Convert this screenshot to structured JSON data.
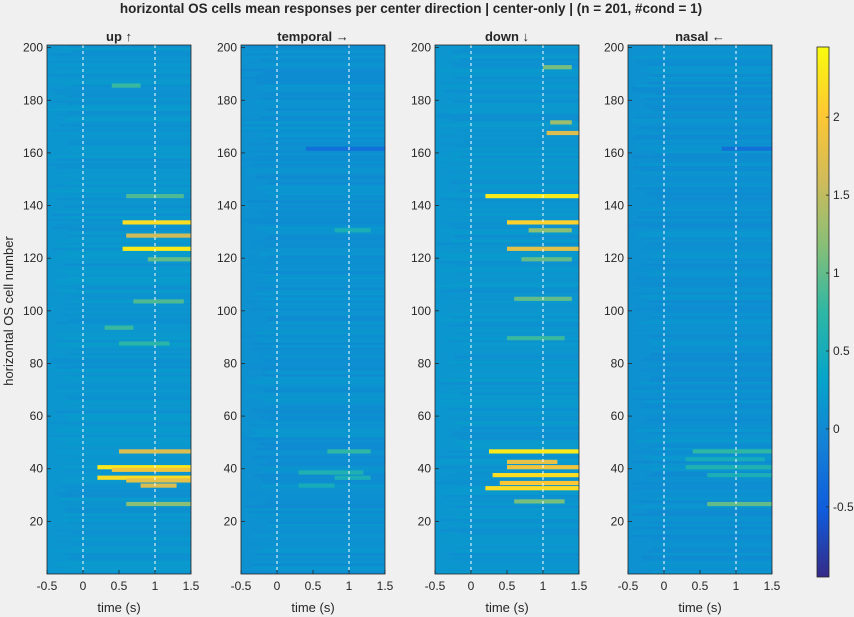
{
  "title": "horizontal OS cells mean responses per center direction | center-only | (n = 201, #cond = 1)",
  "ylabel": "horizontal OS cell number",
  "colorbar": {
    "range": [
      -0.95,
      2.45
    ],
    "ticks": [
      -0.5,
      0,
      0.5,
      1,
      1.5,
      2
    ],
    "tick_labels": [
      "-0.5",
      "0",
      "0.5",
      "1",
      "1.5",
      "2"
    ],
    "colormap": "parula",
    "colors": [
      "#352a87",
      "#0f5cdd",
      "#1481d6",
      "#06a4ca",
      "#2eb7a4",
      "#87bf77",
      "#d1bb59",
      "#fec832",
      "#f9fb0e"
    ]
  },
  "chart_data": [
    {
      "type": "heatmap",
      "title": "up ↑",
      "xlabel": "time (s)",
      "ylabel": "horizontal OS cell number",
      "xlim": [
        -0.5,
        1.5
      ],
      "ylim": [
        0,
        201
      ],
      "xticks": [
        -0.5,
        0,
        0.5,
        1,
        1.5
      ],
      "xtick_labels": [
        "-0.5",
        "0",
        "0.5",
        "1",
        "1.5"
      ],
      "yticks": [
        20,
        40,
        60,
        80,
        100,
        120,
        140,
        160,
        180,
        200
      ],
      "ytick_labels": [
        "20",
        "40",
        "60",
        "80",
        "100",
        "120",
        "140",
        "160",
        "180",
        "200"
      ],
      "vlines": [
        0,
        1
      ],
      "base_value": 0.15,
      "highlights": [
        {
          "row": 134,
          "x": [
            0.55,
            1.5
          ],
          "value": 2.2
        },
        {
          "row": 129,
          "x": [
            0.6,
            1.5
          ],
          "value": 1.6
        },
        {
          "row": 124,
          "x": [
            0.55,
            1.5
          ],
          "value": 2.3
        },
        {
          "row": 120,
          "x": [
            0.9,
            1.5
          ],
          "value": 1.0
        },
        {
          "row": 144,
          "x": [
            0.6,
            1.4
          ],
          "value": 0.9
        },
        {
          "row": 186,
          "x": [
            0.4,
            0.8
          ],
          "value": 0.8
        },
        {
          "row": 104,
          "x": [
            0.7,
            1.4
          ],
          "value": 0.9
        },
        {
          "row": 94,
          "x": [
            0.3,
            0.7
          ],
          "value": 0.8
        },
        {
          "row": 88,
          "x": [
            0.5,
            1.2
          ],
          "value": 0.7
        },
        {
          "row": 47,
          "x": [
            0.5,
            1.5
          ],
          "value": 1.7
        },
        {
          "row": 41,
          "x": [
            0.2,
            1.5
          ],
          "value": 2.3
        },
        {
          "row": 40,
          "x": [
            0.4,
            1.5
          ],
          "value": 1.9
        },
        {
          "row": 37,
          "x": [
            0.2,
            1.5
          ],
          "value": 2.2
        },
        {
          "row": 36,
          "x": [
            0.6,
            1.5
          ],
          "value": 1.8
        },
        {
          "row": 34,
          "x": [
            0.8,
            1.3
          ],
          "value": 1.7
        },
        {
          "row": 27,
          "x": [
            0.6,
            1.5
          ],
          "value": 1.2
        }
      ]
    },
    {
      "type": "heatmap",
      "title": "temporal →",
      "xlabel": "time (s)",
      "xlim": [
        -0.5,
        1.5
      ],
      "ylim": [
        0,
        201
      ],
      "xticks": [
        -0.5,
        0,
        0.5,
        1,
        1.5
      ],
      "xtick_labels": [
        "-0.5",
        "0",
        "0.5",
        "1",
        "1.5"
      ],
      "yticks": [
        20,
        40,
        60,
        80,
        100,
        120,
        140,
        160,
        180,
        200
      ],
      "ytick_labels": [
        "20",
        "40",
        "60",
        "80",
        "100",
        "120",
        "140",
        "160",
        "180",
        "200"
      ],
      "vlines": [
        0,
        1
      ],
      "base_value": 0.1,
      "highlights": [
        {
          "row": 162,
          "x": [
            0.4,
            1.5
          ],
          "value": -0.3
        },
        {
          "row": 131,
          "x": [
            0.8,
            1.3
          ],
          "value": 0.55
        },
        {
          "row": 47,
          "x": [
            0.7,
            1.3
          ],
          "value": 0.75
        },
        {
          "row": 39,
          "x": [
            0.3,
            1.2
          ],
          "value": 0.6
        },
        {
          "row": 37,
          "x": [
            0.8,
            1.3
          ],
          "value": 0.55
        },
        {
          "row": 34,
          "x": [
            0.3,
            0.8
          ],
          "value": 0.5
        }
      ]
    },
    {
      "type": "heatmap",
      "title": "down ↓",
      "xlabel": "time (s)",
      "xlim": [
        -0.5,
        1.5
      ],
      "ylim": [
        0,
        201
      ],
      "xticks": [
        -0.5,
        0,
        0.5,
        1,
        1.5
      ],
      "xtick_labels": [
        "-0.5",
        "0",
        "0.5",
        "1",
        "1.5"
      ],
      "yticks": [
        20,
        40,
        60,
        80,
        100,
        120,
        140,
        160,
        180,
        200
      ],
      "ytick_labels": [
        "20",
        "40",
        "60",
        "80",
        "100",
        "120",
        "140",
        "160",
        "180",
        "200"
      ],
      "vlines": [
        0,
        1
      ],
      "base_value": 0.15,
      "highlights": [
        {
          "row": 193,
          "x": [
            1.0,
            1.4
          ],
          "value": 1.1
        },
        {
          "row": 172,
          "x": [
            1.1,
            1.4
          ],
          "value": 1.3
        },
        {
          "row": 168,
          "x": [
            1.05,
            1.5
          ],
          "value": 1.7
        },
        {
          "row": 144,
          "x": [
            0.2,
            1.5
          ],
          "value": 2.3
        },
        {
          "row": 134,
          "x": [
            0.5,
            1.5
          ],
          "value": 2.1
        },
        {
          "row": 131,
          "x": [
            0.8,
            1.4
          ],
          "value": 1.2
        },
        {
          "row": 124,
          "x": [
            0.5,
            1.5
          ],
          "value": 1.8
        },
        {
          "row": 120,
          "x": [
            0.7,
            1.4
          ],
          "value": 1.0
        },
        {
          "row": 105,
          "x": [
            0.6,
            1.4
          ],
          "value": 1.0
        },
        {
          "row": 90,
          "x": [
            0.5,
            1.3
          ],
          "value": 0.8
        },
        {
          "row": 47,
          "x": [
            0.25,
            1.5
          ],
          "value": 2.3
        },
        {
          "row": 43,
          "x": [
            0.5,
            1.2
          ],
          "value": 1.8
        },
        {
          "row": 41,
          "x": [
            0.5,
            1.5
          ],
          "value": 1.9
        },
        {
          "row": 38,
          "x": [
            0.3,
            1.5
          ],
          "value": 2.2
        },
        {
          "row": 35,
          "x": [
            0.4,
            1.5
          ],
          "value": 2.0
        },
        {
          "row": 33,
          "x": [
            0.2,
            1.5
          ],
          "value": 2.2
        },
        {
          "row": 28,
          "x": [
            0.6,
            1.3
          ],
          "value": 1.1
        }
      ]
    },
    {
      "type": "heatmap",
      "title": "nasal ←",
      "xlabel": "time (s)",
      "xlim": [
        -0.5,
        1.5
      ],
      "ylim": [
        0,
        201
      ],
      "xticks": [
        -0.5,
        0,
        0.5,
        1,
        1.5
      ],
      "xtick_labels": [
        "-0.5",
        "0",
        "0.5",
        "1",
        "1.5"
      ],
      "yticks": [
        20,
        40,
        60,
        80,
        100,
        120,
        140,
        160,
        180,
        200
      ],
      "ytick_labels": [
        "20",
        "40",
        "60",
        "80",
        "100",
        "120",
        "140",
        "160",
        "180",
        "200"
      ],
      "vlines": [
        0,
        1
      ],
      "base_value": 0.1,
      "highlights": [
        {
          "row": 162,
          "x": [
            0.8,
            1.5
          ],
          "value": -0.3
        },
        {
          "row": 47,
          "x": [
            0.4,
            1.5
          ],
          "value": 0.75
        },
        {
          "row": 44,
          "x": [
            0.3,
            1.4
          ],
          "value": 0.5
        },
        {
          "row": 41,
          "x": [
            0.3,
            1.5
          ],
          "value": 0.6
        },
        {
          "row": 38,
          "x": [
            0.6,
            1.5
          ],
          "value": 0.55
        },
        {
          "row": 27,
          "x": [
            0.6,
            1.5
          ],
          "value": 1.0
        }
      ]
    }
  ]
}
